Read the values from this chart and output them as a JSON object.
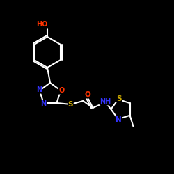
{
  "bg_color": "#000000",
  "bond_color": "#ffffff",
  "atom_colors": {
    "O": "#ff3300",
    "N": "#3333ff",
    "S": "#ccaa00",
    "C": "#ffffff",
    "H": "#ffffff"
  },
  "figsize": [
    2.5,
    2.5
  ],
  "dpi": 100,
  "xlim": [
    0,
    250
  ],
  "ylim": [
    0,
    250
  ]
}
